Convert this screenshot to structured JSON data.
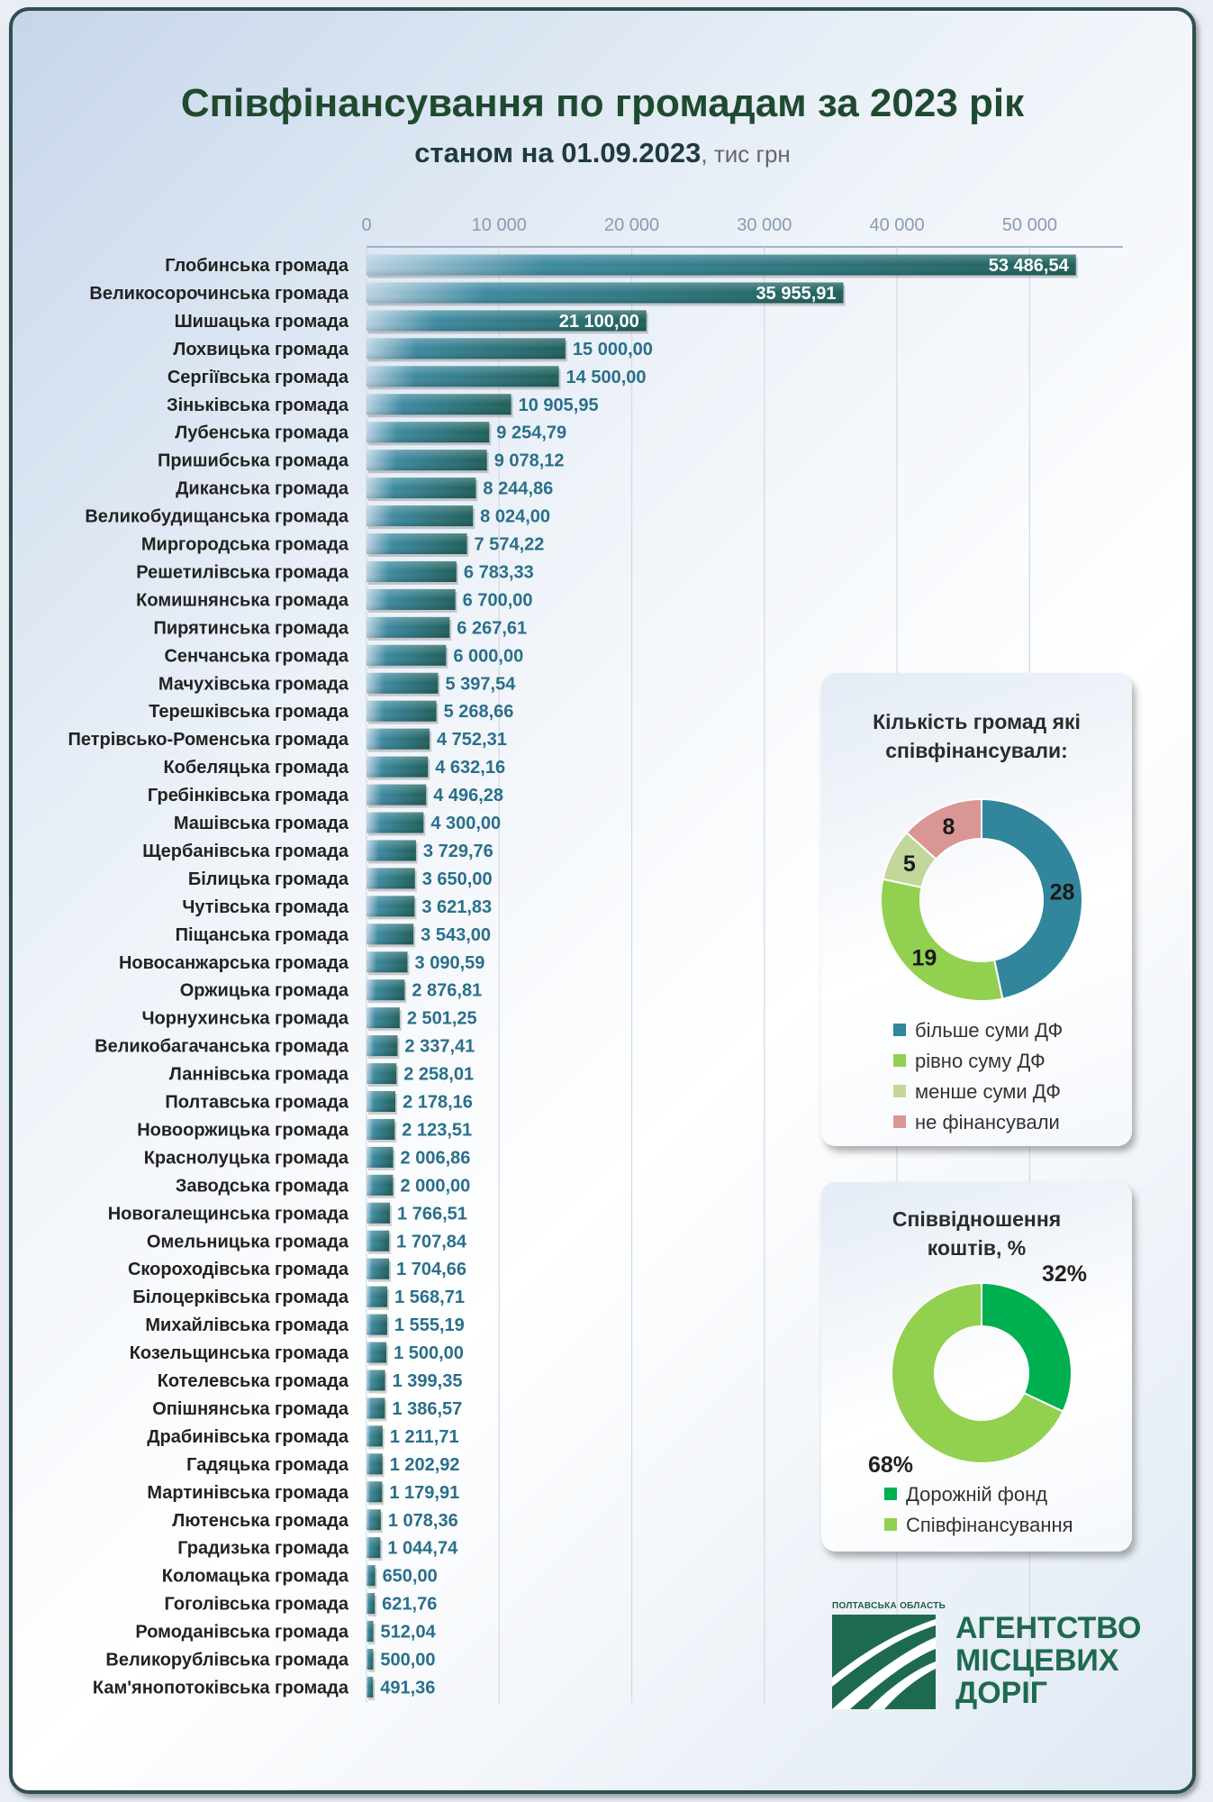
{
  "header": {
    "title": "Співфінансування по громадам за 2023 рік",
    "subtitle_bold": "станом на 01.09.2023",
    "subtitle_unit": ", тис грн"
  },
  "chart_data": [
    {
      "type": "bar",
      "orientation": "horizontal",
      "title": "Співфінансування по громадам за 2023 рік",
      "subtitle": "станом на 01.09.2023, тис грн",
      "xlim": [
        0,
        55000
      ],
      "x_ticks": [
        0,
        10000,
        20000,
        30000,
        40000,
        50000
      ],
      "x_tick_labels": [
        "0",
        "10 000",
        "20 000",
        "30 000",
        "40 000",
        "50 000"
      ],
      "grid": true,
      "bar_color": "#2a6f78",
      "categories": [
        "Глобинська громада",
        "Великосорочинська громада",
        "Шишацька громада",
        "Лохвицька громада",
        "Сергіївська громада",
        "Зіньківська громада",
        "Лубенська громада",
        "Пришибська громада",
        "Диканська громада",
        "Великобудищанська громада",
        "Миргородська громада",
        "Решетилівська громада",
        "Комишнянська громада",
        "Пирятинська громада",
        "Сенчанська громада",
        "Мачухівська громада",
        "Терешківська громада",
        "Петрівсько-Роменська громада",
        "Кобеляцька громада",
        "Гребінківська громада",
        "Машівська громада",
        "Щербанівська громада",
        "Білицька громада",
        "Чутівська громада",
        "Піщанська громада",
        "Новосанжарська громада",
        "Оржицька громада",
        "Чорнухинська громада",
        "Великобагачанська громада",
        "Ланнівська громада",
        "Полтавська громада",
        "Новооржицька громада",
        "Краснолуцька громада",
        "Заводська громада",
        "Новогалещинська громада",
        "Омельницька громада",
        "Скороходівська громада",
        "Білоцерківська громада",
        "Михайлівська громада",
        "Козельщинська громада",
        "Котелевська громада",
        "Опішнянська громада",
        "Драбинівська громада",
        "Гадяцька громада",
        "Мартинівська громада",
        "Лютенська громада",
        "Градизька громада",
        "Коломацька громада",
        "Гоголівська громада",
        "Ромоданівська громада",
        "Великорублівська громада",
        "Кам'янопотоківська громада"
      ],
      "values": [
        53486.54,
        35955.91,
        21100.0,
        15000.0,
        14500.0,
        10905.95,
        9254.79,
        9078.12,
        8244.86,
        8024.0,
        7574.22,
        6783.33,
        6700.0,
        6267.61,
        6000.0,
        5397.54,
        5268.66,
        4752.31,
        4632.16,
        4496.28,
        4300.0,
        3729.76,
        3650.0,
        3621.83,
        3543.0,
        3090.59,
        2876.81,
        2501.25,
        2337.41,
        2258.01,
        2178.16,
        2123.51,
        2006.86,
        2000.0,
        1766.51,
        1707.84,
        1704.66,
        1568.71,
        1555.19,
        1500.0,
        1399.35,
        1386.57,
        1211.71,
        1202.92,
        1179.91,
        1078.36,
        1044.74,
        650.0,
        621.76,
        512.04,
        500.0,
        491.36
      ],
      "value_labels": [
        "53 486,54",
        "35 955,91",
        "21 100,00",
        "15 000,00",
        "14 500,00",
        "10 905,95",
        "9 254,79",
        "9 078,12",
        "8 244,86",
        "8 024,00",
        "7 574,22",
        "6 783,33",
        "6 700,00",
        "6 267,61",
        "6 000,00",
        "5 397,54",
        "5 268,66",
        "4 752,31",
        "4 632,16",
        "4 496,28",
        "4 300,00",
        "3 729,76",
        "3 650,00",
        "3 621,83",
        "3 543,00",
        "3 090,59",
        "2 876,81",
        "2 501,25",
        "2 337,41",
        "2 258,01",
        "2 178,16",
        "2 123,51",
        "2 006,86",
        "2 000,00",
        "1 766,51",
        "1 707,84",
        "1 704,66",
        "1 568,71",
        "1 555,19",
        "1 500,00",
        "1 399,35",
        "1 386,57",
        "1 211,71",
        "1 202,92",
        "1 179,91",
        "1 078,36",
        "1 044,74",
        "650,00",
        "621,76",
        "512,04",
        "500,00",
        "491,36"
      ]
    },
    {
      "type": "pie",
      "style": "donut",
      "title": "Кількість громад які співфінансували:",
      "legend_position": "bottom",
      "labels": [
        "більше суми ДФ",
        "рівно суму ДФ",
        "менше суми ДФ",
        "не фінансували"
      ],
      "values": [
        28,
        19,
        5,
        8
      ],
      "colors": [
        "#31869b",
        "#92d050",
        "#c4d79b",
        "#da9694"
      ]
    },
    {
      "type": "pie",
      "style": "donut",
      "title": "Співвідношення коштів, %",
      "legend_position": "bottom",
      "labels": [
        "Дорожній фонд",
        "Співфінансування"
      ],
      "values": [
        32,
        68
      ],
      "value_labels": [
        "32%",
        "68%"
      ],
      "colors": [
        "#00b050",
        "#92d050"
      ]
    }
  ],
  "logo": {
    "region": "ПОЛТАВСЬКА ОБЛАСТЬ",
    "line1": "АГЕНТСТВО",
    "line2": "МІСЦЕВИХ",
    "line3": "ДОРІГ"
  }
}
